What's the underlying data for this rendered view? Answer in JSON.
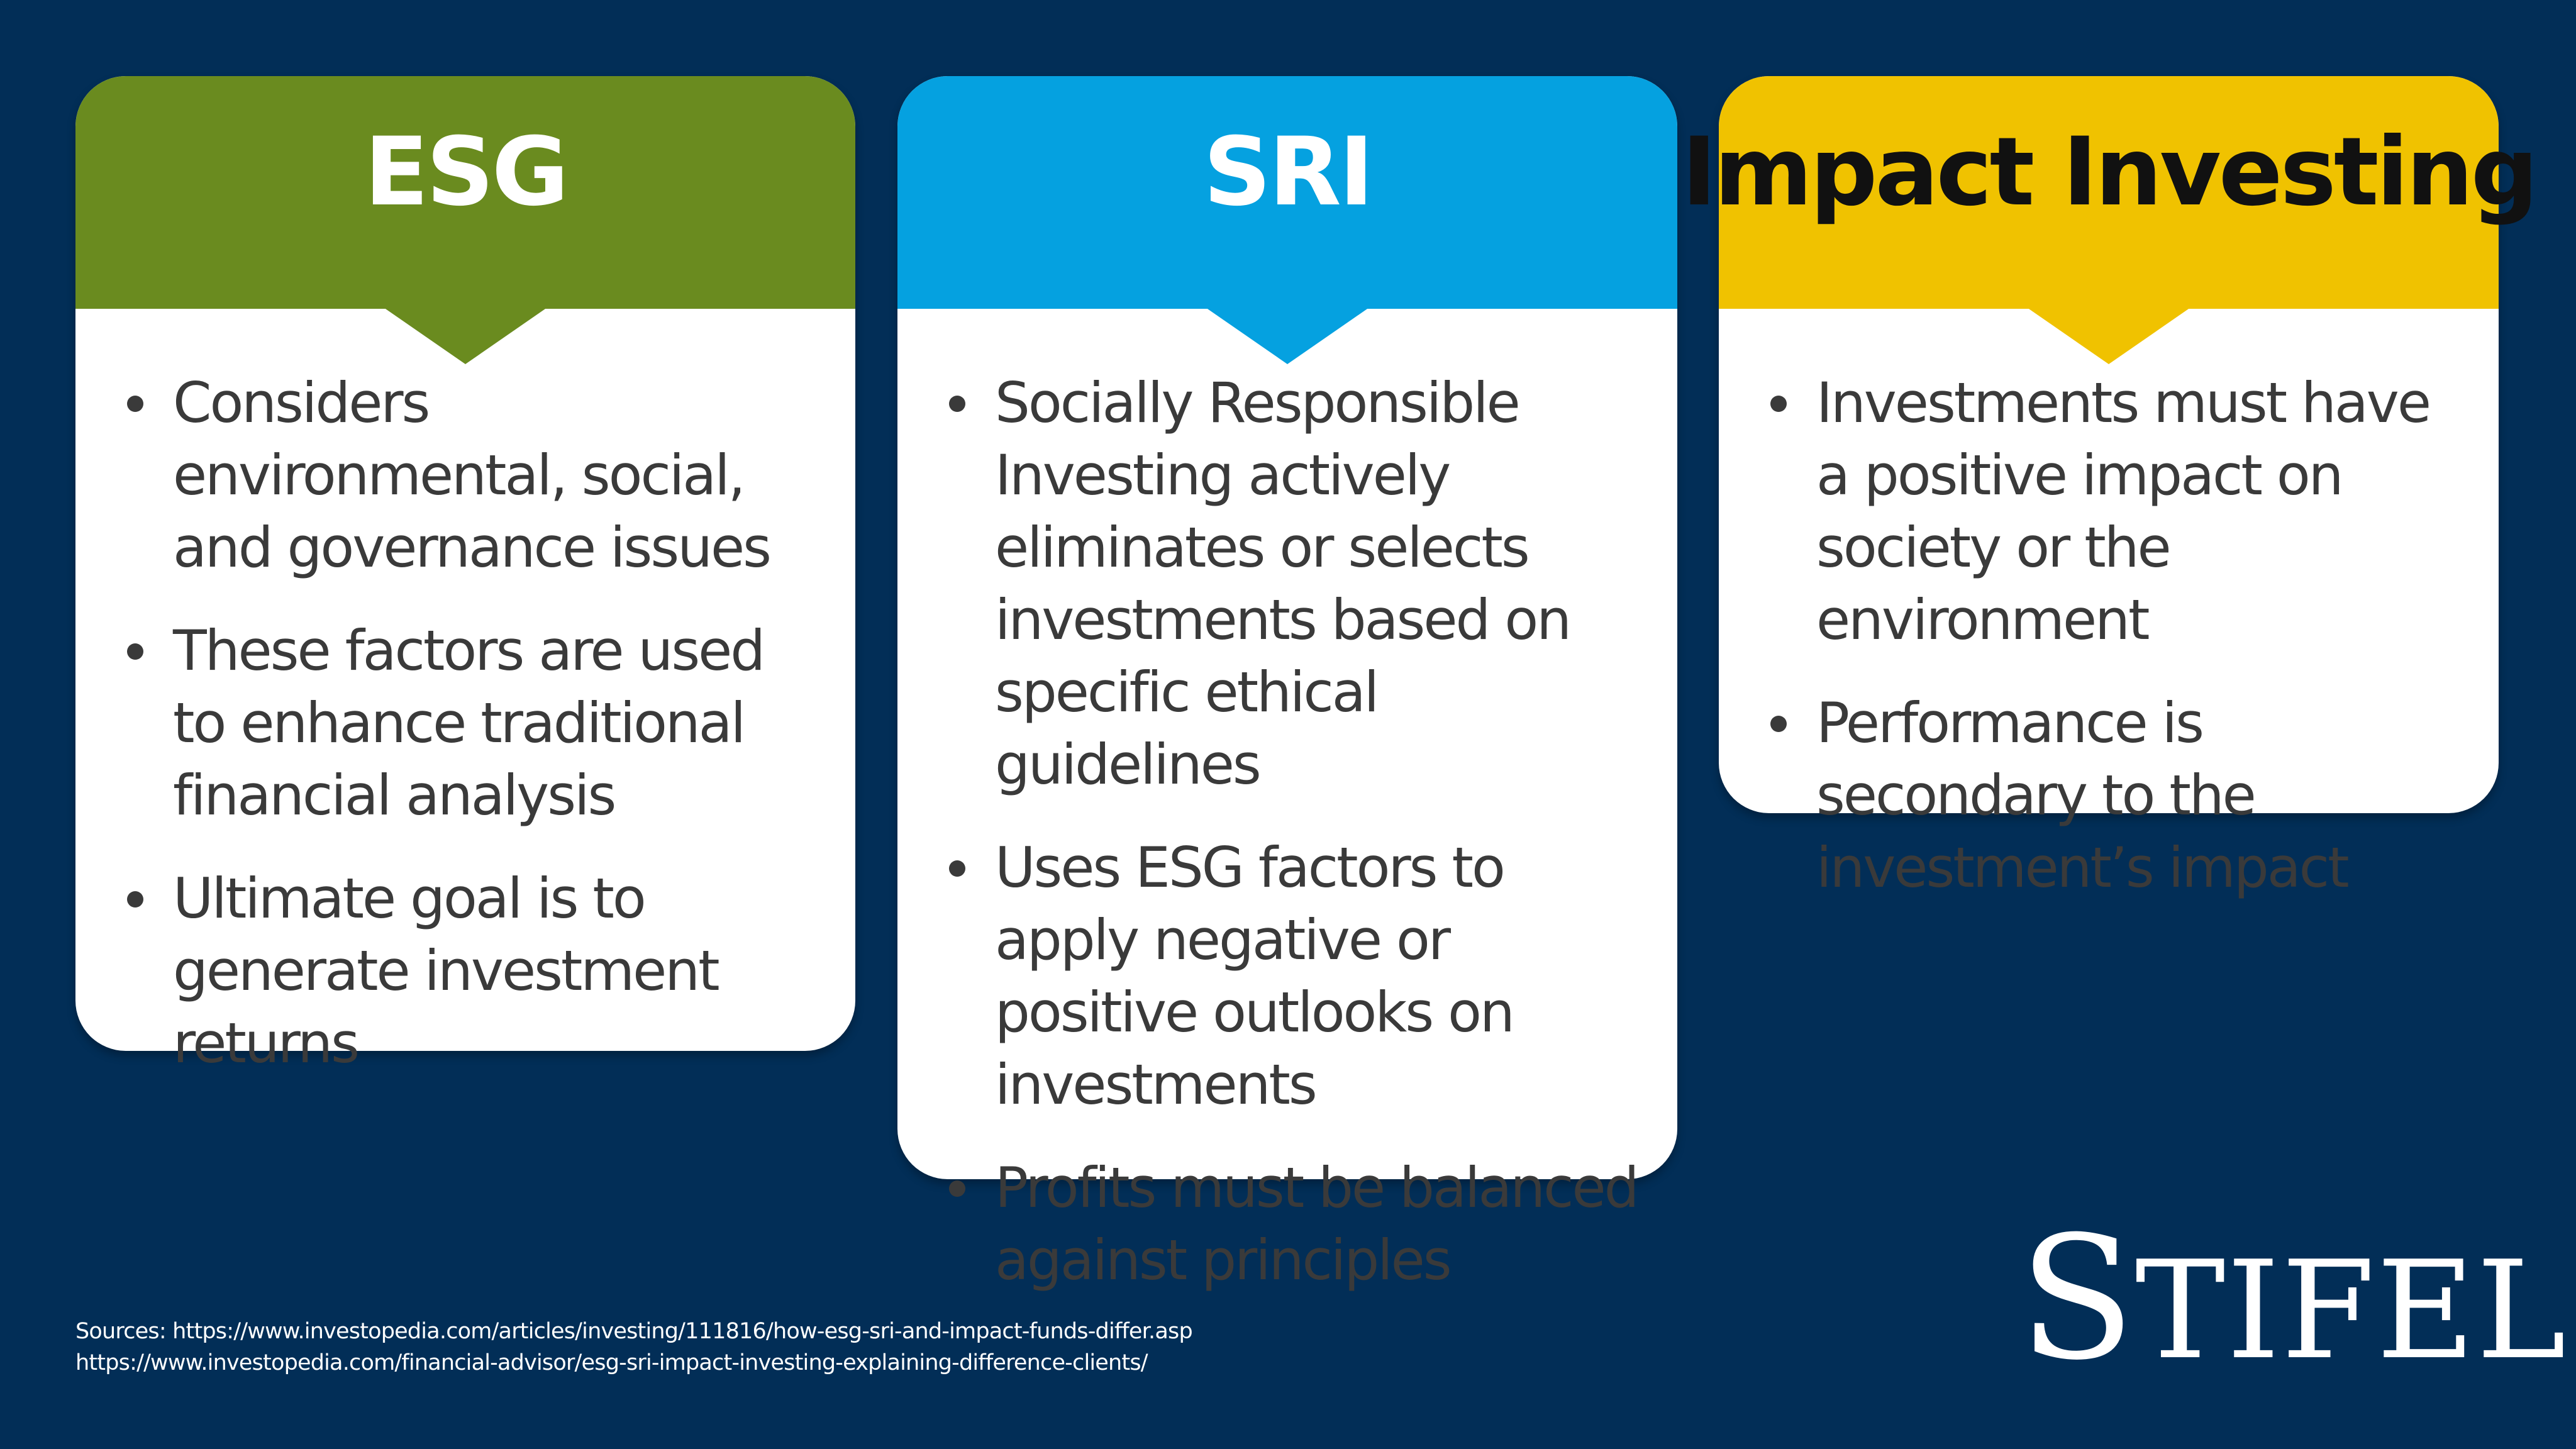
{
  "cards": [
    {
      "id": "esg",
      "title": "ESG",
      "header_color": "#6a8b1f",
      "bullets": [
        "Considers environmental, social, and governance issues",
        "These factors are used to enhance traditional financial analysis",
        "Ultimate goal is to generate investment returns"
      ]
    },
    {
      "id": "sri",
      "title": "SRI",
      "header_color": "#05a1e0",
      "bullets": [
        "Socially Responsible Investing actively eliminates or selects investments based on specific ethical guidelines",
        "Uses ESG factors to apply negative or positive outlooks on investments",
        "Profits must be balanced against principles"
      ]
    },
    {
      "id": "impact",
      "title": "Impact Investing",
      "header_color": "#f0c200",
      "bullets": [
        "Investments must have a positive impact on society or the environment",
        "Performance is secondary to the investment’s impact"
      ]
    }
  ],
  "sources": {
    "line1": "Sources:  https://www.investopedia.com/articles/investing/111816/how-esg-sri-and-impact-funds-differ.asp",
    "line2": "https://www.investopedia.com/financial-advisor/esg-sri-impact-investing-explaining-difference-clients/"
  },
  "logo": {
    "first": "S",
    "rest": "TIFEL"
  },
  "colors": {
    "background": "#022e57",
    "card": "#ffffff",
    "text": "#3a3a3a"
  }
}
